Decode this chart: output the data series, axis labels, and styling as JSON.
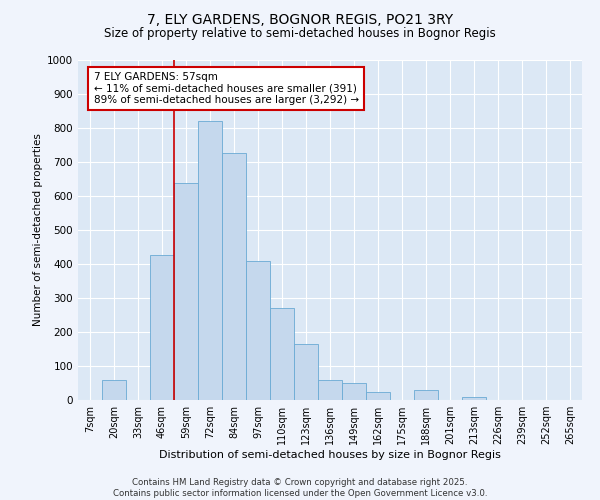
{
  "title1": "7, ELY GARDENS, BOGNOR REGIS, PO21 3RY",
  "title2": "Size of property relative to semi-detached houses in Bognor Regis",
  "xlabel": "Distribution of semi-detached houses by size in Bognor Regis",
  "ylabel": "Number of semi-detached properties",
  "categories": [
    "7sqm",
    "20sqm",
    "33sqm",
    "46sqm",
    "59sqm",
    "72sqm",
    "84sqm",
    "97sqm",
    "110sqm",
    "123sqm",
    "136sqm",
    "149sqm",
    "162sqm",
    "175sqm",
    "188sqm",
    "201sqm",
    "213sqm",
    "226sqm",
    "239sqm",
    "252sqm",
    "265sqm"
  ],
  "values": [
    0,
    60,
    0,
    425,
    637,
    820,
    727,
    410,
    270,
    165,
    60,
    50,
    25,
    0,
    30,
    0,
    10,
    0,
    0,
    0,
    0
  ],
  "bar_color": "#c5d8ed",
  "bar_edge_color": "#6aaad4",
  "vline_position": 3.5,
  "annotation_text": "7 ELY GARDENS: 57sqm\n← 11% of semi-detached houses are smaller (391)\n89% of semi-detached houses are larger (3,292) →",
  "ylim": [
    0,
    1000
  ],
  "yticks": [
    0,
    100,
    200,
    300,
    400,
    500,
    600,
    700,
    800,
    900,
    1000
  ],
  "bg_color": "#dce8f5",
  "grid_color": "#ffffff",
  "fig_bg_color": "#f0f4fc",
  "footer_text": "Contains HM Land Registry data © Crown copyright and database right 2025.\nContains public sector information licensed under the Open Government Licence v3.0."
}
